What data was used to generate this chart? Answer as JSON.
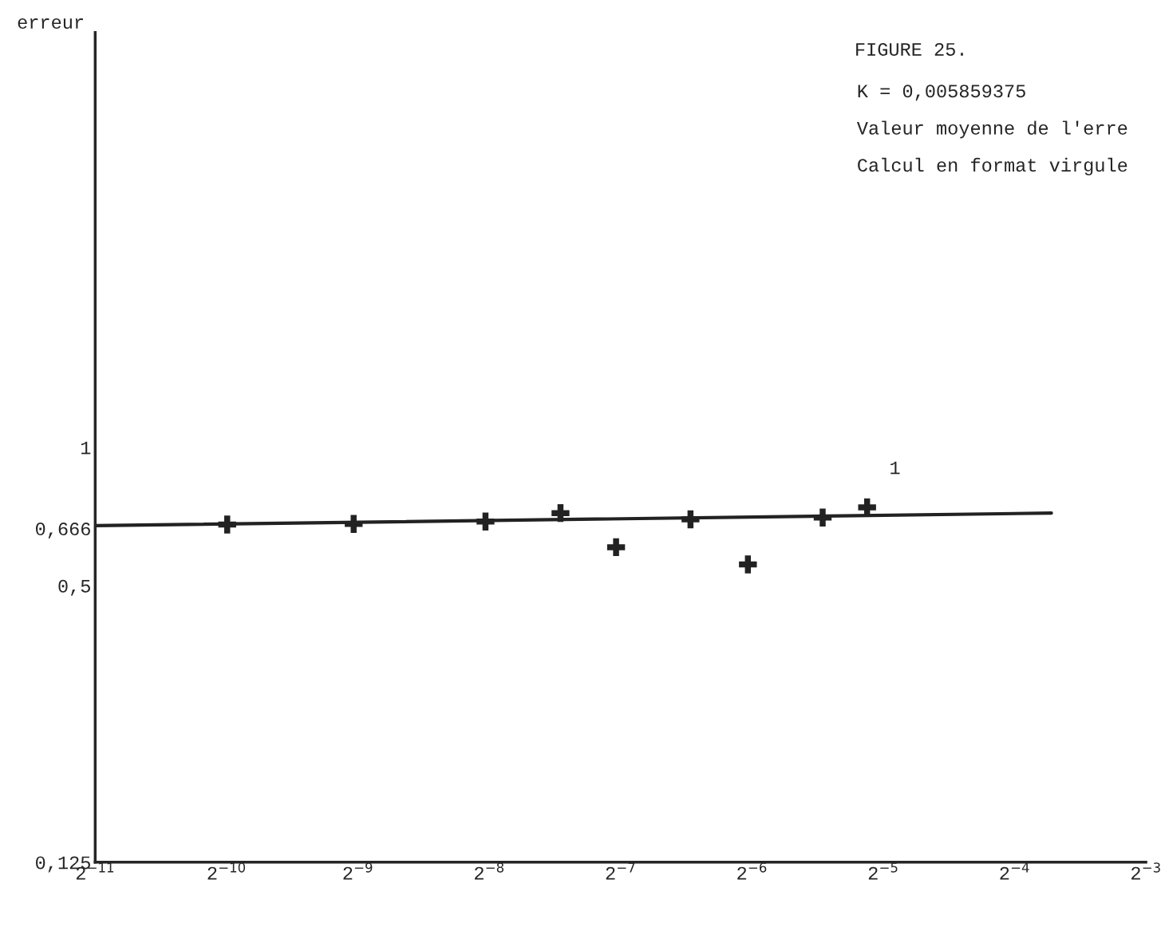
{
  "chart_data": {
    "type": "scatter",
    "title": "FIGURE 25.",
    "ylabel": "erreur",
    "annotations": [
      "K = 0,005859375",
      "Valeur moyenne de l'erre",
      "Calcul en format virgule",
      {
        "text": "1",
        "x": 0.0287,
        "y": 0.74
      }
    ],
    "log": "xy",
    "xlim": [
      0.00048828125,
      0.125
    ],
    "ylim": [
      0.125,
      8
    ],
    "xticks": [
      {
        "value": 0.00048828125,
        "label": "2$^{−11}$"
      },
      {
        "value": 0.0009765625,
        "label": "2$^{−10}$"
      },
      {
        "value": 0.001953125,
        "label": "2$^{−9}$"
      },
      {
        "value": 0.00390625,
        "label": "2$^{−8}$"
      },
      {
        "value": 0.0078125,
        "label": "2$^{−7}$"
      },
      {
        "value": 0.015625,
        "label": "2$^{−6}$"
      },
      {
        "value": 0.03125,
        "label": "2$^{−5}$"
      },
      {
        "value": 0.0625,
        "label": "2$^{−4}$"
      },
      {
        "value": 0.125,
        "label": "2$^{−3}$"
      }
    ],
    "yticks": [
      {
        "value": 0.125,
        "label": "0,125"
      },
      {
        "value": 0.5,
        "label": "0,5"
      },
      {
        "value": 0.666,
        "label": "0,666"
      },
      {
        "value": 1,
        "label": "1"
      }
    ],
    "grid": false,
    "series": [
      {
        "color": "#222222",
        "marker": "cross",
        "x": [
          0.00098,
          0.00191,
          0.00383,
          0.00569,
          0.00763,
          0.0113,
          0.0153,
          0.0227,
          0.0287
        ],
        "values": [
          0.679,
          0.681,
          0.689,
          0.719,
          0.606,
          0.697,
          0.556,
          0.703,
          0.74
        ]
      },
      {
        "type": "line",
        "color": "#222222",
        "line_style": "solid",
        "marker": "none",
        "x": [
          0.00048828125,
          0.0759
        ],
        "values": [
          0.675,
          0.719
        ]
      }
    ]
  }
}
